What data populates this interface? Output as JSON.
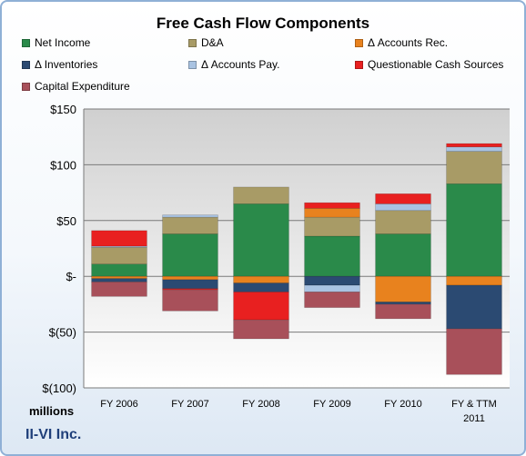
{
  "chart_data": {
    "type": "bar",
    "stacked": true,
    "title": "Free Cash Flow Components",
    "company": "II-VI Inc.",
    "units_label": "millions",
    "categories": [
      "FY 2006",
      "FY 2007",
      "FY 2008",
      "FY 2009",
      "FY 2010",
      "FY & TTM 2011"
    ],
    "y_ticks": [
      {
        "value": 150,
        "label": "$150"
      },
      {
        "value": 100,
        "label": "$100"
      },
      {
        "value": 50,
        "label": "$50"
      },
      {
        "value": 0,
        "label": "$-"
      },
      {
        "value": -50,
        "label": "$(50)"
      },
      {
        "value": -100,
        "label": "$(100)"
      }
    ],
    "ylim": [
      -100,
      150
    ],
    "grid": true,
    "legend_position": "top",
    "series": [
      {
        "name": "Net Income",
        "color": "#2a8a4a",
        "values": [
          11,
          38,
          65,
          36,
          38,
          83
        ]
      },
      {
        "name": "D&A",
        "color": "#a89b66",
        "values": [
          15,
          15,
          15,
          17,
          21,
          29
        ]
      },
      {
        "name": "Δ Accounts Rec.",
        "color": "#e8821e",
        "values": [
          -2,
          -3,
          -6,
          8,
          -23,
          -8
        ]
      },
      {
        "name": "Δ Inventories",
        "color": "#2b4a72",
        "values": [
          -3,
          -8,
          -8,
          -8,
          -2,
          -39
        ]
      },
      {
        "name": "Δ Accounts Pay.",
        "color": "#a9c3e2",
        "values": [
          1,
          2,
          0,
          -6,
          6,
          4
        ]
      },
      {
        "name": "Questionable Cash Sources",
        "color": "#e82020",
        "values": [
          14,
          -1,
          -25,
          5,
          9,
          3
        ]
      },
      {
        "name": "Capital Expenditure",
        "color": "#a8505a",
        "values": [
          -13,
          -19,
          -17,
          -14,
          -13,
          -41
        ]
      }
    ]
  }
}
